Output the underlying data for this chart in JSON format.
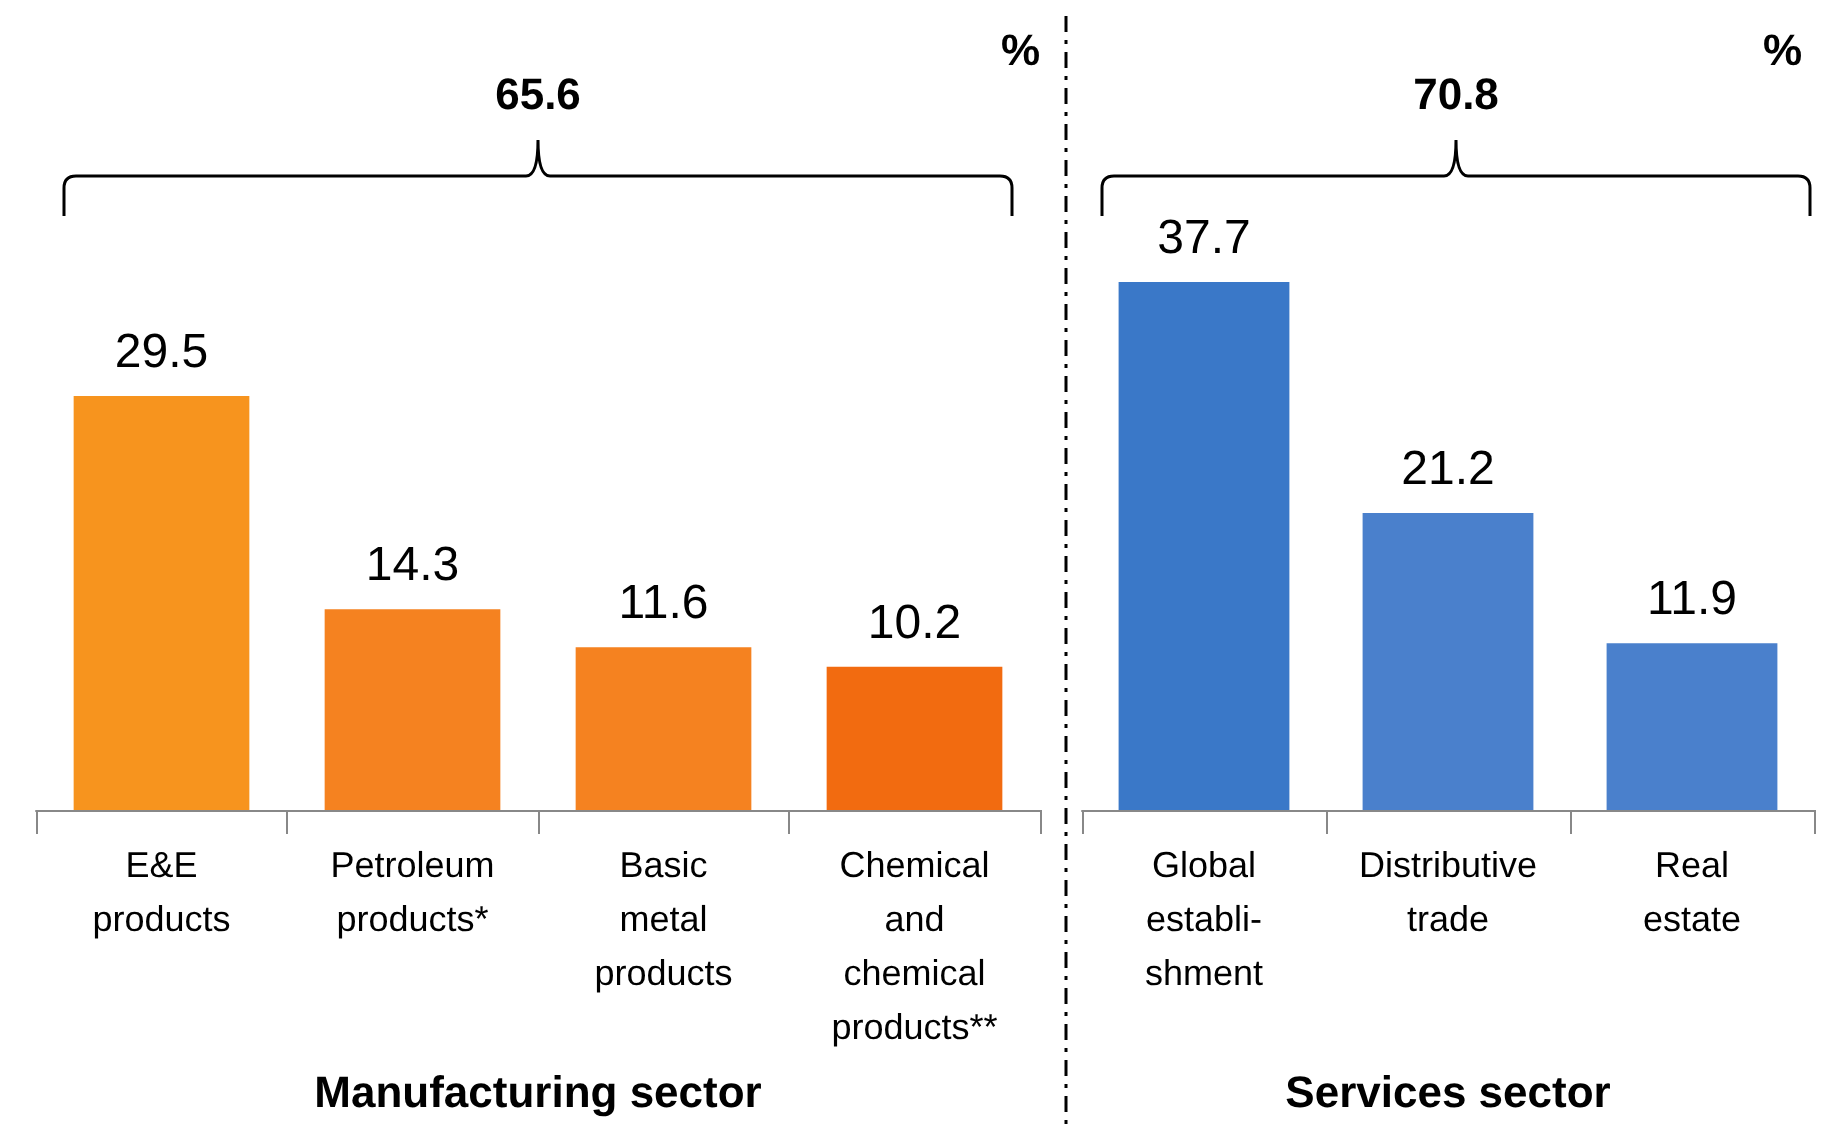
{
  "chart_data": [
    {
      "type": "bar",
      "xlabel": "Manufacturing sector",
      "ylabel": "%",
      "annotations": [
        "65.6"
      ],
      "categories": [
        "E&E\nproducts",
        "Petroleum\nproducts*",
        "Basic\nmetal\nproducts",
        "Chemical\nand\nchemical\nproducts**"
      ],
      "values": [
        29.5,
        14.3,
        11.6,
        10.2
      ],
      "colors": [
        "#f7941e",
        "#f58220",
        "#f58220",
        "#f26b10"
      ],
      "data_labels": true
    },
    {
      "type": "bar",
      "xlabel": "Services sector",
      "ylabel": "%",
      "annotations": [
        "70.8"
      ],
      "categories": [
        "Global\nestabli-\nshment",
        "Distributive\ntrade",
        "Real\nestate"
      ],
      "values": [
        37.7,
        21.2,
        11.9
      ],
      "colors": [
        "#3a78c8",
        "#4a80cc",
        "#4a80cc"
      ],
      "data_labels": true
    }
  ]
}
